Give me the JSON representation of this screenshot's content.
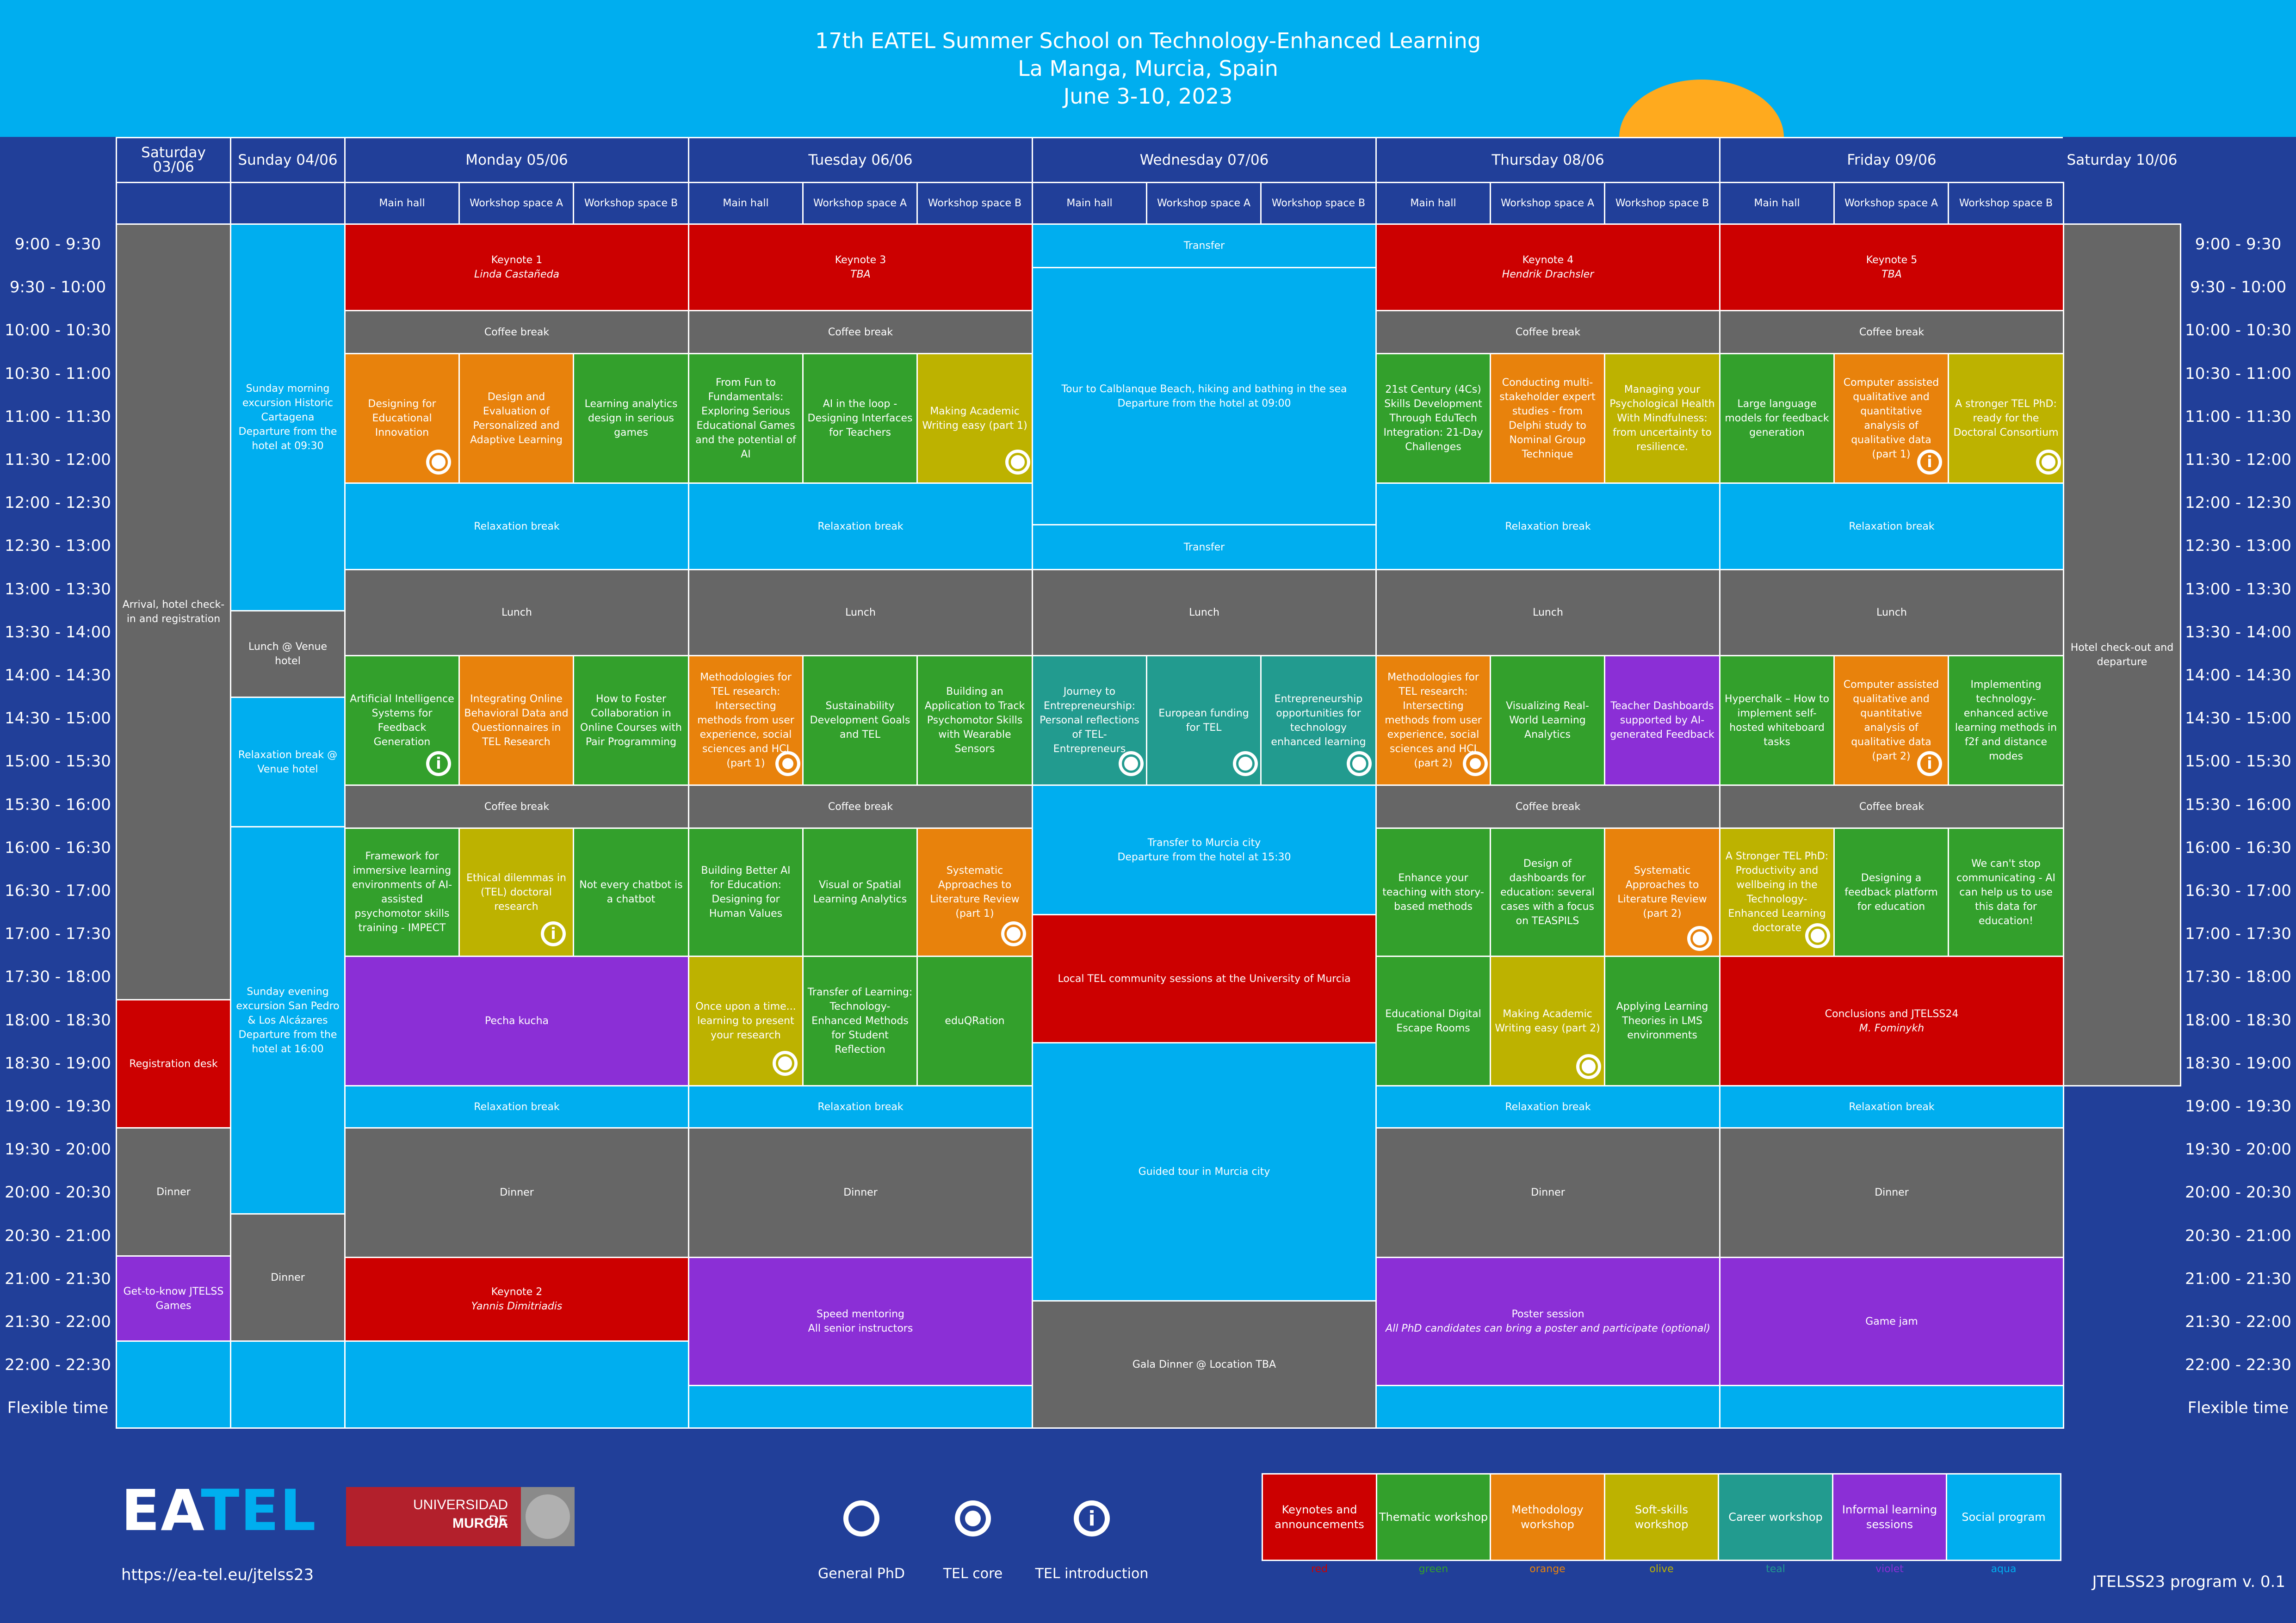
{
  "header": {
    "line1": "17th EATEL Summer School on Technology-Enhanced Learning",
    "line2": "La Manga, Murcia, Spain",
    "line3": "June 3-10, 2023"
  },
  "days": {
    "sat1": "Saturday 03/06",
    "sun": "Sunday 04/06",
    "mon": "Monday 05/06",
    "tue": "Tuesday 06/06",
    "wed": "Wednesday 07/06",
    "thu": "Thursday 08/06",
    "fri": "Friday 09/06",
    "sat2": "Saturday 10/06"
  },
  "rooms": {
    "main": "Main hall",
    "a": "Workshop space A",
    "b": "Workshop space B"
  },
  "times": [
    "9:00 - 9:30",
    "9:30 - 10:00",
    "10:00 - 10:30",
    "10:30 - 11:00",
    "11:00 - 11:30",
    "11:30 - 12:00",
    "12:00 - 12:30",
    "12:30 - 13:00",
    "13:00 - 13:30",
    "13:30 - 14:00",
    "14:00 - 14:30",
    "14:30 - 15:00",
    "15:00 - 15:30",
    "15:30 - 16:00",
    "16:00 - 16:30",
    "16:30 - 17:00",
    "17:00 - 17:30",
    "17:30 - 18:00",
    "18:00 - 18:30",
    "18:30 - 19:00",
    "19:00 - 19:30",
    "19:30 - 20:00",
    "20:00 - 20:30",
    "20:30 - 21:00",
    "21:00 - 21:30",
    "21:30 - 22:00",
    "22:00 - 22:30",
    "Flexible time"
  ],
  "colors": {
    "red": "#cc0000",
    "green": "#33a02c",
    "orange": "#e8820c",
    "olive": "#bdb200",
    "teal": "#229b8f",
    "violet": "#8b2fd6",
    "aqua": "#00aeef",
    "grey": "#666666",
    "navy": "#213f99"
  },
  "events": {
    "sat1_arrival": "Arrival, hotel check-in and registration",
    "sat1_registration": "Registration desk",
    "sat1_dinner": "Dinner",
    "sat1_games": "Get-to-know JTELSS Games",
    "sun_morning": "Sunday morning excursion Historic Cartagena Departure from the hotel at 09:30",
    "sun_lunch": "Lunch @ Venue hotel",
    "sun_relax": "Relaxation break @ Venue hotel",
    "sun_evening": "Sunday evening excursion San Pedro & Los Alcázares Departure from the hotel at 16:00",
    "sun_dinner": "Dinner",
    "keynote1": "Keynote 1",
    "keynote1_who": "Linda Castañeda",
    "keynote2": "Keynote 2",
    "keynote2_who": "Yannis Dimitriadis",
    "keynote3": "Keynote 3",
    "keynote3_who": "TBA",
    "keynote4": "Keynote 4",
    "keynote4_who": "Hendrik Drachsler",
    "keynote5": "Keynote 5",
    "keynote5_who": "TBA",
    "coffee": "Coffee break",
    "relax": "Relaxation break",
    "lunch": "Lunch",
    "dinner": "Dinner",
    "transfer": "Transfer",
    "mon_w1": "Designing for Educational Innovation",
    "mon_w2": "Design and Evaluation of Personalized and Adaptive Learning",
    "mon_w3": "Learning analytics design in serious games",
    "mon_w4": "Artificial Intelligence Systems for Feedback Generation",
    "mon_w5": "Integrating Online Behavioral Data and Questionnaires in TEL Research",
    "mon_w6": "How to Foster Collaboration in Online Courses with Pair Programming",
    "mon_w7": "Framework for immersive learning environments of AI-assisted psychomotor skills training - IMPECT",
    "mon_w8": "Ethical dilemmas in (TEL) doctoral research",
    "mon_w9": "Not every chatbot is a chatbot",
    "mon_pecha": "Pecha kucha",
    "tue_w1": "From Fun to Fundamentals: Exploring Serious Educational Games and the potential of AI",
    "tue_w2": "AI in the loop - Designing Interfaces for Teachers",
    "tue_w3": "Making Academic Writing easy (part 1)",
    "tue_w4": "Methodologies for TEL research: Intersecting methods from user experience, social sciences and HCI (part 1)",
    "tue_w5": "Sustainability Development Goals and TEL",
    "tue_w6": "Building an Application to Track Psychomotor Skills with Wearable Sensors",
    "tue_w7": "Building Better AI for Education: Designing for Human Values",
    "tue_w8": "Visual or Spatial Learning Analytics",
    "tue_w9": "Systematic Approaches to Literature Review (part 1)",
    "tue_w10": "Once upon a time... learning to present your research",
    "tue_w11": "Transfer of Learning: Technology-Enhanced Methods for Student Reflection",
    "tue_w12": "eduQRation",
    "tue_speed": "Speed mentoring",
    "tue_speed_sub": "All senior instructors",
    "wed_beach": "Tour to Calblanque Beach, hiking and bathing in the sea Departure from the hotel at 09:00",
    "wed_c1": "Journey to Entrepreneurship: Personal reflections of TEL-Entrepreneurs",
    "wed_c2": "European funding for TEL",
    "wed_c3": "Entrepreneurship opportunities for technology enhanced learning",
    "wed_murcia": "Transfer to Murcia city",
    "wed_murcia_sub": "Departure from the hotel at 15:30",
    "wed_local": "Local TEL community sessions at the University of Murcia",
    "wed_tour": "Guided tour in Murcia city",
    "wed_gala": "Gala Dinner @ Location TBA",
    "thu_w1": "21st Century (4Cs) Skills Development Through EduTech Integration: 21-Day Challenges",
    "thu_w2": "Conducting multi-stakeholder expert studies - from Delphi study to Nominal Group Technique",
    "thu_w3": "Managing your Psychological Health With Mindfulness: from uncertainty to resilience.",
    "thu_w4": "Methodologies for TEL research: Intersecting methods from user experience, social sciences and HCI (part 2)",
    "thu_w5": "Visualizing Real-World Learning Analytics",
    "thu_w6": "Teacher Dashboards supported by AI-generated Feedback",
    "thu_w7": "Enhance your teaching with story-based methods",
    "thu_w8": "Design of dashboards for education: several cases with a focus on TEASPILS",
    "thu_w9": "Systematic Approaches to Literature Review (part 2)",
    "thu_w10": "Educational Digital Escape Rooms",
    "thu_w11": "Making Academic Writing easy (part 2)",
    "thu_w12": "Applying Learning Theories in LMS environments",
    "thu_poster": "Poster session",
    "thu_poster_sub": "All PhD candidates can bring a poster and participate (optional)",
    "fri_w1": "Large language models for feedback generation",
    "fri_w2": "Computer assisted qualitative and quantitative analysis of qualitative data (part 1)",
    "fri_w3": "A stronger TEL PhD: ready for the Doctoral Consortium",
    "fri_w4": "Hyperchalk – How to implement self-hosted whiteboard tasks",
    "fri_w5": "Computer assisted qualitative and quantitative analysis of qualitative data (part 2)",
    "fri_w6": "Implementing technology-enhanced active learning methods in f2f and distance modes",
    "fri_w7": "A Stronger TEL PhD: Productivity and wellbeing in the Technology-Enhanced Learning doctorate",
    "fri_w8": "Designing a feedback platform for education",
    "fri_w9": "We can't stop communicating - AI can help us to use this data for education!",
    "fri_concl": "Conclusions and JTELSS24",
    "fri_concl_who": "M. Fominykh",
    "fri_game": "Game jam",
    "sat2_checkout": "Hotel check-out and departure"
  },
  "footer": {
    "logo": "EATEL",
    "univ_line1": "UNIVERSIDAD DE",
    "univ_line2": "MURCIA",
    "url": "https://ea-tel.eu/jtelss23",
    "mark_phd": "General PhD",
    "mark_core": "TEL core",
    "mark_intro": "TEL introduction",
    "mark_intro_glyph": "i",
    "version": "JTELSS23 program v. 0.1"
  },
  "legend": [
    {
      "label": "Keynotes and announcements",
      "name": "red",
      "color": "#cc0000"
    },
    {
      "label": "Thematic workshop",
      "name": "green",
      "color": "#33a02c"
    },
    {
      "label": "Methodology workshop",
      "name": "orange",
      "color": "#e8820c"
    },
    {
      "label": "Soft-skills workshop",
      "name": "olive",
      "color": "#bdb200"
    },
    {
      "label": "Career workshop",
      "name": "teal",
      "color": "#229b8f"
    },
    {
      "label": "Informal learning sessions",
      "name": "violet",
      "color": "#8b2fd6"
    },
    {
      "label": "Social program",
      "name": "aqua",
      "color": "#00aeef"
    }
  ]
}
